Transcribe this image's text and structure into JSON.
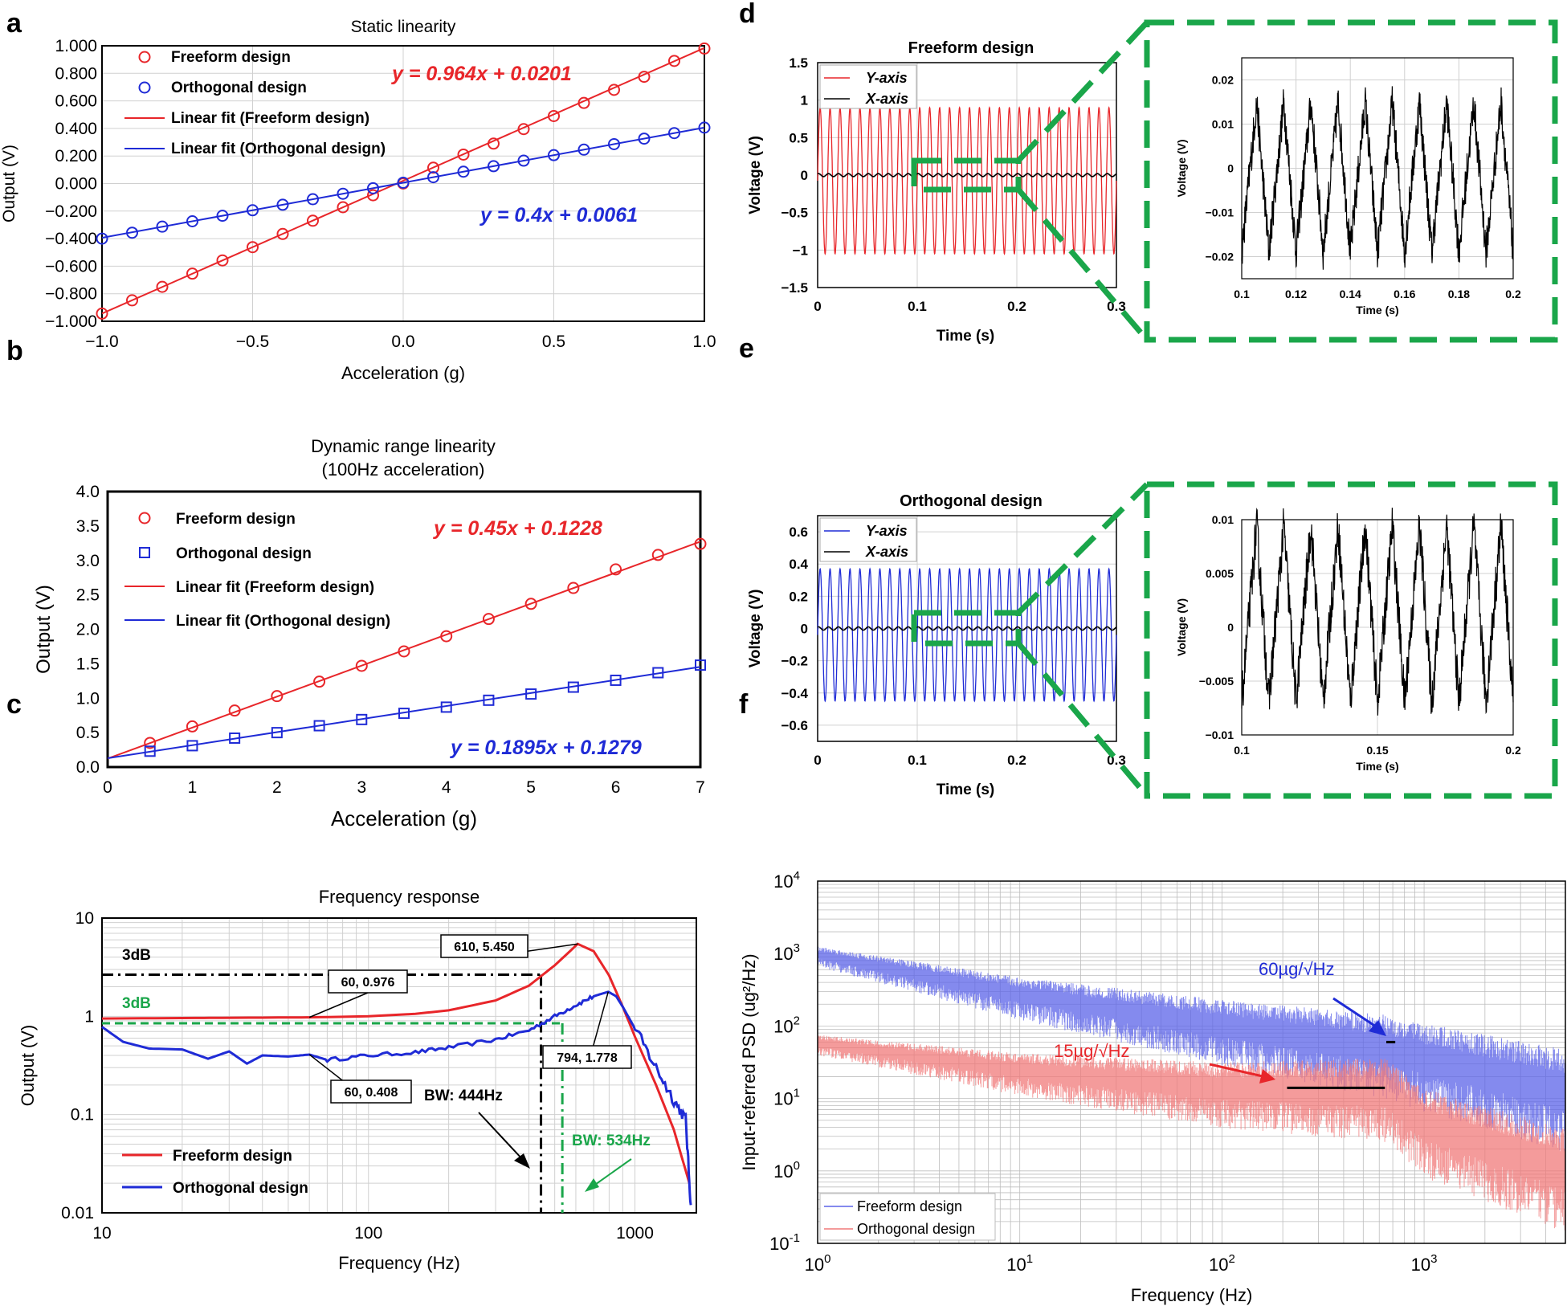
{
  "panels": {
    "a": {
      "label": "a",
      "chart_data": {
        "type": "scatter",
        "title": "Static linearity",
        "xlabel": "Acceleration (g)",
        "ylabel": "Output (V)",
        "xlim": [
          -1.0,
          1.0
        ],
        "ylim": [
          -1.0,
          1.0
        ],
        "xticks": [
          "−1.0",
          "−0.5",
          "0.0",
          "0.5",
          "1.0"
        ],
        "yticks": [
          "−1.000",
          "−0.800",
          "−0.600",
          "−0.400",
          "−0.200",
          "0.000",
          "0.200",
          "0.400",
          "0.600",
          "0.800",
          "1.000"
        ],
        "legend": [
          "Freeform design",
          "Orthogonal design",
          "Linear fit (Freeform design)",
          "Linear fit (Orthogonal design)"
        ],
        "x": [
          -1.0,
          -0.9,
          -0.8,
          -0.7,
          -0.6,
          -0.5,
          -0.4,
          -0.3,
          -0.2,
          -0.1,
          0.0,
          0.1,
          0.2,
          0.3,
          0.4,
          0.5,
          0.6,
          0.7,
          0.8,
          0.9,
          1.0
        ],
        "series": [
          {
            "name": "Freeform design",
            "color": "#e8262a",
            "marker": "circle",
            "values": [
              -0.944,
              -0.848,
              -0.75,
              -0.654,
              -0.558,
              -0.462,
              -0.366,
              -0.27,
              -0.172,
              -0.085,
              0.0,
              0.115,
              0.21,
              0.29,
              0.395,
              0.49,
              0.585,
              0.68,
              0.775,
              0.89,
              0.98
            ]
          },
          {
            "name": "Orthogonal design",
            "color": "#1f2bd6",
            "marker": "circle",
            "values": [
              -0.4,
              -0.357,
              -0.313,
              -0.274,
              -0.234,
              -0.194,
              -0.154,
              -0.114,
              -0.074,
              -0.034,
              0.006,
              0.046,
              0.086,
              0.126,
              0.166,
              0.206,
              0.246,
              0.286,
              0.326,
              0.366,
              0.406
            ]
          }
        ],
        "fits": [
          {
            "name": "Linear fit (Freeform design)",
            "slope": 0.964,
            "intercept": 0.0201,
            "color": "#e8262a",
            "label": "y = 0.964x + 0.0201"
          },
          {
            "name": "Linear fit (Orthogonal design)",
            "slope": 0.4,
            "intercept": 0.0061,
            "color": "#1f2bd6",
            "label": "y = 0.4x + 0.0061"
          }
        ]
      }
    },
    "b": {
      "label": "b",
      "chart_data": {
        "type": "scatter",
        "title": "Dynamic range linearity",
        "subtitle": "(100Hz acceleration)",
        "xlabel": "Acceleration (g)",
        "ylabel": "Output (V)",
        "xlim": [
          0,
          7
        ],
        "ylim": [
          0,
          4.0
        ],
        "xticks": [
          "0",
          "1",
          "2",
          "3",
          "4",
          "5",
          "6",
          "7"
        ],
        "yticks": [
          "0.0",
          "0.5",
          "1.0",
          "1.5",
          "2.0",
          "2.5",
          "3.0",
          "3.5",
          "4.0"
        ],
        "legend": [
          "Freeform design",
          "Orthogonal design",
          "Linear fit (Freeform design)",
          "Linear fit (Orthogonal design)"
        ],
        "x": [
          0.5,
          1.0,
          1.5,
          2.0,
          2.5,
          3.0,
          3.5,
          4.0,
          4.5,
          5.0,
          5.5,
          6.0,
          6.5,
          7.0
        ],
        "series": [
          {
            "name": "Freeform design",
            "color": "#e8262a",
            "marker": "circle",
            "values": [
              0.35,
              0.59,
              0.82,
              1.03,
              1.24,
              1.47,
              1.68,
              1.9,
              2.15,
              2.37,
              2.6,
              2.87,
              3.08,
              3.24
            ]
          },
          {
            "name": "Orthogonal design",
            "color": "#1f2bd6",
            "marker": "square",
            "values": [
              0.23,
              0.31,
              0.42,
              0.5,
              0.6,
              0.69,
              0.78,
              0.87,
              0.97,
              1.06,
              1.16,
              1.26,
              1.37,
              1.48
            ]
          }
        ],
        "fits": [
          {
            "name": "Linear fit (Freeform design)",
            "slope": 0.45,
            "intercept": 0.1228,
            "color": "#e8262a",
            "label": "y = 0.45x + 0.1228"
          },
          {
            "name": "Linear fit (Orthogonal design)",
            "slope": 0.1895,
            "intercept": 0.1279,
            "color": "#1f2bd6",
            "label": "y = 0.1895x + 0.1279"
          }
        ]
      }
    },
    "c": {
      "label": "c",
      "chart_data": {
        "type": "line",
        "title": "Frequency response",
        "xlabel": "Frequency (Hz)",
        "ylabel": "Output (V)",
        "xscale": "log",
        "yscale": "log",
        "xlim": [
          10,
          1700
        ],
        "ylim": [
          0.01,
          10
        ],
        "xticks": [
          "10",
          "100",
          "1000"
        ],
        "yticks": [
          "0.01",
          "0.1",
          "1",
          "10"
        ],
        "legend": [
          "Freeform design",
          "Orthogonal design"
        ],
        "series": [
          {
            "name": "Freeform design",
            "color": "#e8262a",
            "x": [
              10,
              20,
              40,
              60,
              100,
              150,
              200,
              300,
              400,
              500,
              610,
              700,
              800,
              900,
              1000,
              1200,
              1400,
              1600
            ],
            "values": [
              0.95,
              0.96,
              0.97,
              0.976,
              1.0,
              1.06,
              1.15,
              1.45,
              2.05,
              3.3,
              5.45,
              4.6,
              2.6,
              1.25,
              0.62,
              0.2,
              0.07,
              0.02
            ]
          },
          {
            "name": "Orthogonal design",
            "color": "#1f2bd6",
            "x": [
              10,
              12,
              15,
              20,
              25,
              30,
              35,
              40,
              50,
              60,
              70,
              100,
              150,
              200,
              300,
              400,
              500,
              600,
              700,
              794,
              850,
              900,
              1000,
              1200,
              1400,
              1550,
              1620
            ],
            "values": [
              0.78,
              0.55,
              0.47,
              0.46,
              0.37,
              0.44,
              0.33,
              0.4,
              0.39,
              0.408,
              0.36,
              0.4,
              0.43,
              0.48,
              0.58,
              0.72,
              1.0,
              1.3,
              1.6,
              1.778,
              1.6,
              1.25,
              0.75,
              0.3,
              0.14,
              0.09,
              0.012
            ]
          }
        ],
        "annotations": [
          "610, 5.450",
          "60, 0.976",
          "794, 1.778",
          "60, 0.408"
        ],
        "thresholds": [
          {
            "label": "3dB",
            "level": 2.65,
            "color": "#000000"
          },
          {
            "label": "3dB",
            "level": 0.85,
            "color": "#1aa64a"
          }
        ],
        "bandwidth": [
          {
            "label": "BW: 444Hz",
            "freq": 444,
            "color": "#000000"
          },
          {
            "label": "BW: 534Hz",
            "freq": 534,
            "color": "#1aa64a"
          }
        ]
      }
    },
    "d": {
      "label": "d",
      "chart_data": [
        {
          "type": "line",
          "title": "Freeform design",
          "xlabel": "Time (s)",
          "ylabel": "Voltage (V)",
          "xlim": [
            0,
            0.3
          ],
          "ylim": [
            -1.5,
            1.5
          ],
          "xticks": [
            "0",
            "0.1",
            "0.2",
            "0.3"
          ],
          "yticks": [
            "−1.5",
            "−1",
            "−0.5",
            "0",
            "0.5",
            "1",
            "1.5"
          ],
          "legend": [
            "Y-axis",
            "X-axis"
          ],
          "series": [
            {
              "name": "Y-axis",
              "color": "#e8262a",
              "frequency_hz": 100,
              "max": 0.9,
              "min": -1.05
            },
            {
              "name": "X-axis",
              "color": "#000000",
              "frequency_hz": 100,
              "max": 0.02,
              "min": -0.02
            }
          ]
        },
        {
          "type": "line",
          "title": "",
          "xlabel": "Time (s)",
          "ylabel": "Voltage (V)",
          "xlim": [
            0.1,
            0.2
          ],
          "ylim": [
            -0.025,
            0.025
          ],
          "xticks": [
            "0.1",
            "0.12",
            "0.14",
            "0.16",
            "0.18",
            "0.2"
          ],
          "yticks": [
            "−0.02",
            "−0.01",
            "0",
            "0.01",
            "0.02"
          ],
          "series": [
            {
              "name": "X-axis (zoom)",
              "color": "#000000",
              "frequency_hz": 100,
              "max": 0.015,
              "min": -0.019
            }
          ]
        }
      ]
    },
    "e": {
      "label": "e",
      "chart_data": [
        {
          "type": "line",
          "title": "Orthogonal design",
          "xlabel": "Time (s)",
          "ylabel": "Voltage (V)",
          "xlim": [
            0,
            0.3
          ],
          "ylim": [
            -0.7,
            0.7
          ],
          "xticks": [
            "0",
            "0.1",
            "0.2",
            "0.3"
          ],
          "yticks": [
            "−0.6",
            "−0.4",
            "−0.2",
            "0",
            "0.2",
            "0.4",
            "0.6"
          ],
          "legend": [
            "Y-axis",
            "X-axis"
          ],
          "series": [
            {
              "name": "Y-axis",
              "color": "#1f2bd6",
              "frequency_hz": 100,
              "max": 0.37,
              "min": -0.45
            },
            {
              "name": "X-axis",
              "color": "#000000",
              "frequency_hz": 100,
              "max": 0.01,
              "min": -0.01
            }
          ]
        },
        {
          "type": "line",
          "title": "",
          "xlabel": "Time (s)",
          "ylabel": "Voltage (V)",
          "xlim": [
            0.1,
            0.2
          ],
          "ylim": [
            -0.01,
            0.01
          ],
          "xticks": [
            "0.1",
            "0.15",
            "0.2"
          ],
          "yticks": [
            "−0.01",
            "−0.005",
            "0",
            "0.005",
            "0.01"
          ],
          "series": [
            {
              "name": "X-axis (zoom)",
              "color": "#000000",
              "frequency_hz": 100,
              "max": 0.0095,
              "min": -0.007
            }
          ]
        }
      ]
    },
    "f": {
      "label": "f",
      "chart_data": {
        "type": "line",
        "title": "",
        "xlabel": "Frequency (Hz)",
        "ylabel": "Input-referred PSD (ug²/Hz)",
        "xscale": "log",
        "yscale": "log",
        "xlim": [
          1,
          5000
        ],
        "ylim": [
          0.1,
          10000
        ],
        "xticks": [
          {
            "base": "10",
            "exp": "0"
          },
          {
            "base": "10",
            "exp": "1"
          },
          {
            "base": "10",
            "exp": "2"
          },
          {
            "base": "10",
            "exp": "3"
          }
        ],
        "yticks": [
          {
            "base": "10",
            "exp": "-1"
          },
          {
            "base": "10",
            "exp": "0"
          },
          {
            "base": "10",
            "exp": "1"
          },
          {
            "base": "10",
            "exp": "2"
          },
          {
            "base": "10",
            "exp": "3"
          },
          {
            "base": "10",
            "exp": "4"
          }
        ],
        "legend": [
          "Freeform design",
          "Orthogonal design"
        ],
        "series": [
          {
            "name": "Freeform design",
            "color": "#5b63e8",
            "x": [
              1,
              10,
              100,
              650,
              1000,
              5000
            ],
            "values": [
              1000,
              290,
              110,
              55,
              40,
              15
            ]
          },
          {
            "name": "Orthogonal design",
            "color": "#f07a7a",
            "x": [
              1,
              10,
              100,
              650,
              1000,
              5000
            ],
            "values": [
              60,
              26,
              15,
              14,
              5,
              1.2
            ]
          }
        ],
        "annotations": [
          {
            "label": "60µg/√Hz",
            "color": "#1f2bd6",
            "value": 60
          },
          {
            "label": "15µg/√Hz",
            "color": "#e8262a",
            "value": 15
          }
        ]
      }
    }
  }
}
